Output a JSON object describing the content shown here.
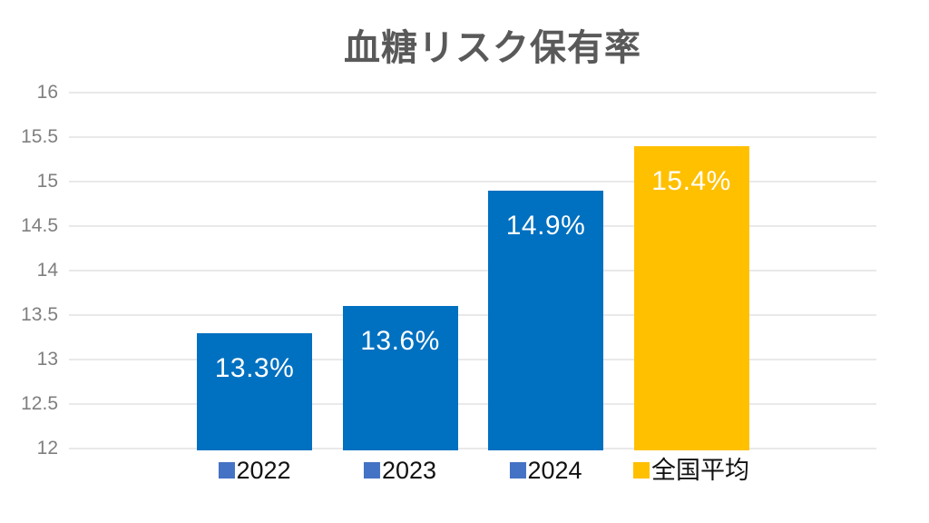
{
  "chart_data": {
    "type": "bar",
    "title": "血糖リスク保有率",
    "categories": [
      "2022",
      "2023",
      "2024",
      "全国平均"
    ],
    "values": [
      13.3,
      13.6,
      14.9,
      15.4
    ],
    "data_labels": [
      "13.3%",
      "13.6%",
      "14.9%",
      "15.4%"
    ],
    "bar_colors": [
      "#0070C0",
      "#0070C0",
      "#0070C0",
      "#FFC000"
    ],
    "legend": [
      {
        "label": "2022",
        "marker_color": "#4472C4"
      },
      {
        "label": "2023",
        "marker_color": "#4472C4"
      },
      {
        "label": "2024",
        "marker_color": "#4472C4"
      },
      {
        "label": "全国平均",
        "marker_color": "#FFC000"
      }
    ],
    "ylim": [
      12,
      16
    ],
    "yticks": [
      {
        "value": 12,
        "label": "12"
      },
      {
        "value": 12.5,
        "label": "12.5"
      },
      {
        "value": 13,
        "label": "13"
      },
      {
        "value": 13.5,
        "label": "13.5"
      },
      {
        "value": 14,
        "label": "14"
      },
      {
        "value": 14.5,
        "label": "14.5"
      },
      {
        "value": 15,
        "label": "15"
      },
      {
        "value": 15.5,
        "label": "15.5"
      },
      {
        "value": 16,
        "label": "16"
      }
    ],
    "grid": true,
    "legend_position": "bottom",
    "xlabel": "",
    "ylabel": ""
  },
  "style_colors": {
    "background": "#ffffff",
    "title_text": "#595959",
    "axis_tick_text": "#7f7f7f",
    "gridline": "#e9e9e9",
    "data_label_text": "#ffffff",
    "legend_text": "#111111"
  }
}
